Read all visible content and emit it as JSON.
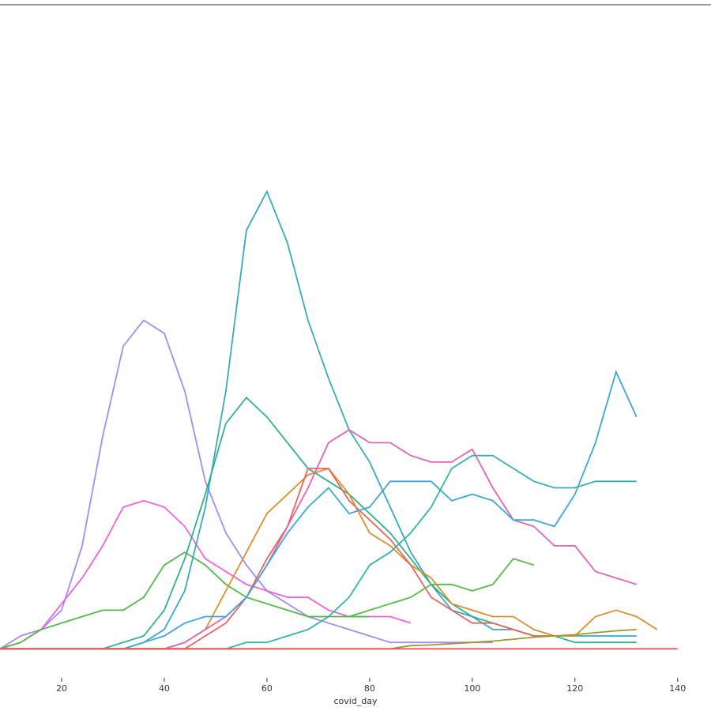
{
  "chart_data": {
    "type": "line",
    "x_label": "covid_day",
    "x": [
      8,
      12,
      16,
      20,
      24,
      28,
      32,
      36,
      40,
      44,
      48,
      52,
      56,
      60,
      64,
      68,
      72,
      76,
      80,
      84,
      88,
      92,
      96,
      100,
      104,
      108,
      112,
      116,
      120,
      124,
      128,
      132,
      136,
      140
    ],
    "xlim": [
      8,
      146.5
    ],
    "xticks": [
      20,
      40,
      60,
      80,
      100,
      120,
      140
    ],
    "ylim": [
      -4.5,
      100
    ],
    "series": [
      {
        "color": "#a48cf4",
        "values": [
          0,
          2,
          3,
          6,
          16,
          33,
          47,
          51,
          49,
          40,
          26,
          18,
          13,
          9,
          7,
          5,
          4,
          3,
          2,
          1,
          1,
          1,
          1,
          1,
          1,
          null,
          null,
          null,
          null,
          null,
          null,
          null,
          null,
          null
        ]
      },
      {
        "color": "#f061dd",
        "values": [
          0,
          1,
          3,
          7,
          11,
          16,
          22,
          23,
          22,
          19,
          14,
          12,
          10,
          9,
          8,
          8,
          6,
          5,
          5,
          5,
          4,
          null,
          null,
          null,
          null,
          null,
          null,
          null,
          null,
          null,
          null,
          null,
          null,
          null
        ]
      },
      {
        "color": "#50b848",
        "values": [
          0,
          1,
          3,
          4,
          5,
          6,
          6,
          8,
          13,
          15,
          13,
          10,
          8,
          7,
          6,
          5,
          5,
          5,
          5,
          null,
          null,
          null,
          null,
          null,
          null,
          null,
          null,
          null,
          null,
          null,
          null,
          null,
          null,
          null
        ]
      },
      {
        "color": "#38aac0",
        "values": [
          0,
          0,
          0,
          0,
          0,
          0,
          0,
          1,
          3,
          9,
          22,
          40,
          65,
          71,
          63,
          51,
          42,
          34,
          29,
          22,
          15,
          10,
          6,
          5,
          3,
          3,
          2,
          2,
          2,
          2,
          2,
          2,
          null,
          null
        ]
      },
      {
        "color": "#2fb08e",
        "values": [
          0,
          0,
          0,
          0,
          0,
          0,
          1,
          2,
          6,
          14,
          24,
          35,
          39,
          36,
          32,
          28,
          26,
          24,
          21,
          18,
          14,
          10,
          7,
          5,
          4,
          3,
          2,
          2,
          1,
          1,
          1,
          1,
          null,
          null
        ]
      },
      {
        "color": "#d98f2f",
        "values": [
          0,
          0,
          0,
          0,
          0,
          0,
          0,
          0,
          0,
          1,
          3,
          9,
          15,
          21,
          24,
          27,
          28,
          24,
          18,
          16,
          13,
          11,
          7,
          6,
          5,
          5,
          3,
          2,
          2,
          5,
          6,
          5,
          3,
          null
        ]
      },
      {
        "color": "#e8665a",
        "values": [
          0,
          0,
          0,
          0,
          0,
          0,
          0,
          0,
          0,
          0,
          2,
          4,
          8,
          14,
          19,
          28,
          28,
          23,
          20,
          17,
          13,
          8,
          6,
          4,
          4,
          3,
          2,
          2,
          null,
          null,
          null,
          null,
          null,
          null
        ]
      },
      {
        "color": "#e462b6",
        "values": [
          0,
          0,
          0,
          0,
          0,
          0,
          0,
          0,
          0,
          1,
          3,
          5,
          8,
          13,
          19,
          25,
          32,
          34,
          32,
          32,
          30,
          29,
          29,
          31,
          25,
          20,
          19,
          16,
          16,
          12,
          11,
          10,
          null,
          null
        ]
      },
      {
        "color": "#3ea6d9",
        "values": [
          0,
          0,
          0,
          0,
          0,
          0,
          0,
          1,
          2,
          4,
          5,
          5,
          8,
          13,
          18,
          22,
          25,
          21,
          22,
          26,
          26,
          26,
          23,
          24,
          23,
          20,
          20,
          19,
          24,
          32,
          43,
          36,
          null,
          null
        ]
      },
      {
        "color": "#34b4a8",
        "values": [
          0,
          0,
          0,
          0,
          0,
          0,
          0,
          0,
          0,
          0,
          0,
          0,
          1,
          1,
          2,
          3,
          5,
          8,
          13,
          15,
          18,
          22,
          28,
          30,
          30,
          28,
          26,
          25,
          25,
          26,
          26,
          26,
          null,
          null
        ]
      },
      {
        "color": "#5cb84a",
        "values": [
          null,
          null,
          null,
          null,
          null,
          null,
          null,
          null,
          null,
          null,
          null,
          null,
          null,
          null,
          null,
          null,
          null,
          5,
          6,
          7,
          8,
          10,
          10,
          9,
          10,
          14,
          13,
          null,
          null,
          null,
          null,
          null,
          null,
          null
        ]
      },
      {
        "color": "#9a9a30",
        "values": [
          0,
          0,
          0,
          0,
          0,
          0,
          0,
          0,
          0,
          0,
          0,
          0,
          0,
          0,
          0,
          0,
          0,
          0,
          0,
          0,
          0.5,
          0.6,
          0.8,
          1,
          1.2,
          1.5,
          1.8,
          2,
          2.2,
          2.5,
          2.8,
          3,
          null,
          null
        ]
      },
      {
        "color": "#f0555b",
        "values": [
          0,
          0,
          0,
          0,
          0,
          0,
          0,
          0,
          0,
          0,
          0,
          0,
          0,
          0,
          0,
          0,
          0,
          0,
          0,
          0,
          0,
          0,
          0,
          0,
          0,
          0,
          0,
          0,
          0,
          0,
          0,
          0,
          0,
          0
        ]
      }
    ]
  }
}
